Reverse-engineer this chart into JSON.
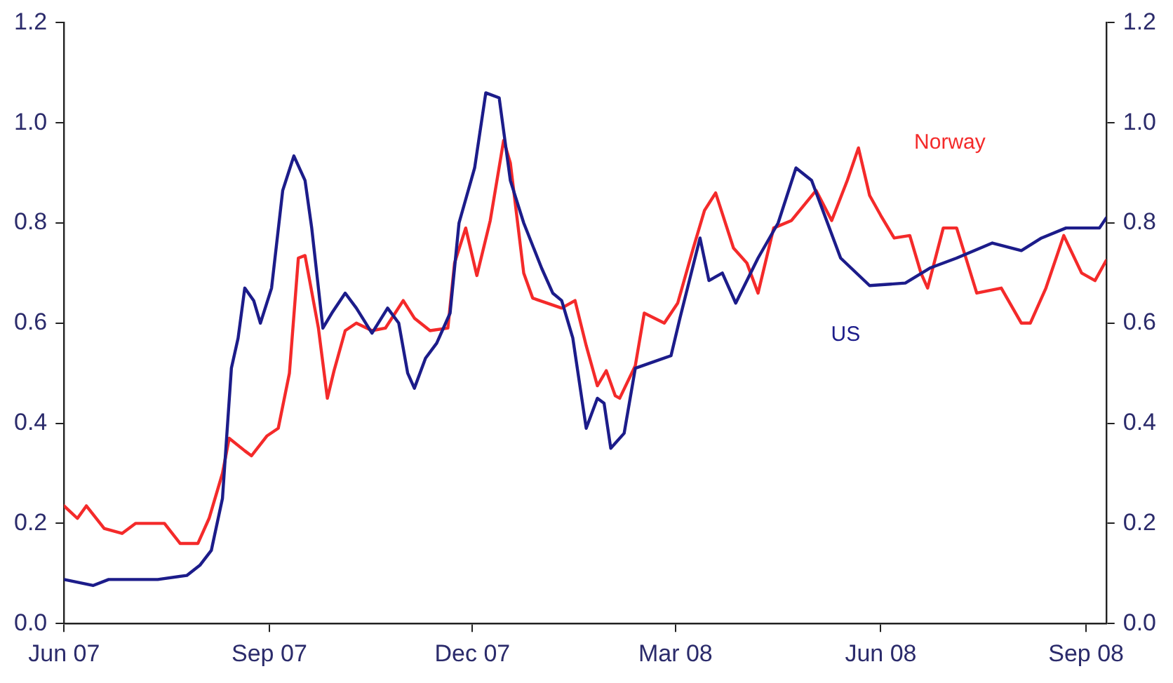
{
  "chart_data": {
    "type": "line",
    "xlim": [
      "2007-06-01",
      "2008-09-10"
    ],
    "xticks": [
      {
        "value": "2007-06-01",
        "label": "Jun 07"
      },
      {
        "value": "2007-09-01",
        "label": "Sep 07"
      },
      {
        "value": "2007-12-01",
        "label": "Dec 07"
      },
      {
        "value": "2008-03-01",
        "label": "Mar 08"
      },
      {
        "value": "2008-06-01",
        "label": "Jun 08"
      },
      {
        "value": "2008-09-01",
        "label": "Sep 08"
      }
    ],
    "ylim": [
      0,
      1.2
    ],
    "yticks": [
      {
        "value": 0,
        "label": "0.0"
      },
      {
        "value": 0.2,
        "label": "0.2"
      },
      {
        "value": 0.4,
        "label": "0.4"
      },
      {
        "value": 0.6,
        "label": "0.6"
      },
      {
        "value": 0.8,
        "label": "0.8"
      },
      {
        "value": 1,
        "label": "1.0"
      },
      {
        "value": 1.2,
        "label": "1.2"
      }
    ],
    "y2lim": [
      0,
      1.2
    ],
    "y2ticks": [
      {
        "value": 0,
        "label": "0.0"
      },
      {
        "value": 0.2,
        "label": "0.2"
      },
      {
        "value": 0.4,
        "label": "0.4"
      },
      {
        "value": 0.6,
        "label": "0.6"
      },
      {
        "value": 0.8,
        "label": "0.8"
      },
      {
        "value": 1,
        "label": "1.0"
      },
      {
        "value": 1.2,
        "label": "1.2"
      }
    ],
    "grid": false,
    "legend": false,
    "marker": "none",
    "line_style": "solid",
    "series": [
      {
        "name": "US",
        "color": "#1c1c8a",
        "x": [
          "2007-06-01",
          "2007-06-14",
          "2007-06-21",
          "2007-07-13",
          "2007-07-26",
          "2007-08-01",
          "2007-08-06",
          "2007-08-11",
          "2007-08-15",
          "2007-08-18",
          "2007-08-21",
          "2007-08-25",
          "2007-08-28",
          "2007-09-02",
          "2007-09-07",
          "2007-09-12",
          "2007-09-17",
          "2007-09-20",
          "2007-09-25",
          "2007-09-29",
          "2007-10-05",
          "2007-10-10",
          "2007-10-17",
          "2007-10-24",
          "2007-10-29",
          "2007-11-02",
          "2007-11-05",
          "2007-11-10",
          "2007-11-15",
          "2007-11-21",
          "2007-11-25",
          "2007-12-02",
          "2007-12-07",
          "2007-12-13",
          "2007-12-18",
          "2007-12-24",
          "2008-01-01",
          "2008-01-06",
          "2008-01-10",
          "2008-01-15",
          "2008-01-21",
          "2008-01-26",
          "2008-01-29",
          "2008-02-01",
          "2008-02-07",
          "2008-02-12",
          "2008-02-28",
          "2008-03-03",
          "2008-03-12",
          "2008-03-16",
          "2008-03-22",
          "2008-03-28",
          "2008-04-07",
          "2008-04-16",
          "2008-04-24",
          "2008-05-01",
          "2008-05-14",
          "2008-05-27",
          "2008-06-12",
          "2008-06-23",
          "2008-07-05",
          "2008-07-21",
          "2008-08-03",
          "2008-08-12",
          "2008-08-23",
          "2008-09-07",
          "2008-09-10"
        ],
        "values": [
          0.088,
          0.076,
          0.088,
          0.088,
          0.096,
          0.117,
          0.146,
          0.25,
          0.51,
          0.57,
          0.67,
          0.645,
          0.6,
          0.67,
          0.865,
          0.934,
          0.885,
          0.79,
          0.59,
          0.62,
          0.66,
          0.63,
          0.58,
          0.63,
          0.6,
          0.5,
          0.47,
          0.53,
          0.56,
          0.62,
          0.8,
          0.91,
          1.06,
          1.05,
          0.885,
          0.8,
          0.71,
          0.66,
          0.645,
          0.57,
          0.39,
          0.45,
          0.44,
          0.35,
          0.38,
          0.51,
          0.535,
          0.61,
          0.77,
          0.685,
          0.7,
          0.64,
          0.73,
          0.8,
          0.91,
          0.885,
          0.73,
          0.675,
          0.68,
          0.71,
          0.73,
          0.76,
          0.745,
          0.77,
          0.79,
          0.79,
          0.81
        ]
      },
      {
        "name": "Norway",
        "color": "#f42a2a",
        "x": [
          "2007-06-01",
          "2007-06-07",
          "2007-06-11",
          "2007-06-19",
          "2007-06-27",
          "2007-07-03",
          "2007-07-16",
          "2007-07-23",
          "2007-07-31",
          "2007-08-05",
          "2007-08-11",
          "2007-08-14",
          "2007-08-21",
          "2007-08-24",
          "2007-08-31",
          "2007-09-05",
          "2007-09-10",
          "2007-09-14",
          "2007-09-17",
          "2007-09-23",
          "2007-09-27",
          "2007-09-30",
          "2007-10-05",
          "2007-10-10",
          "2007-10-17",
          "2007-10-23",
          "2007-10-31",
          "2007-11-05",
          "2007-11-12",
          "2007-11-20",
          "2007-11-23",
          "2007-11-28",
          "2007-12-03",
          "2007-12-09",
          "2007-12-15",
          "2007-12-18",
          "2007-12-24",
          "2007-12-28",
          "2008-01-10",
          "2008-01-16",
          "2008-01-21",
          "2008-01-26",
          "2008-01-30",
          "2008-02-03",
          "2008-02-05",
          "2008-02-12",
          "2008-02-16",
          "2008-02-25",
          "2008-03-02",
          "2008-03-09",
          "2008-03-14",
          "2008-03-19",
          "2008-03-27",
          "2008-04-02",
          "2008-04-07",
          "2008-04-14",
          "2008-04-22",
          "2008-05-03",
          "2008-05-10",
          "2008-05-17",
          "2008-05-22",
          "2008-05-27",
          "2008-06-01",
          "2008-06-07",
          "2008-06-14",
          "2008-06-19",
          "2008-06-22",
          "2008-06-29",
          "2008-07-05",
          "2008-07-14",
          "2008-07-25",
          "2008-08-03",
          "2008-08-07",
          "2008-08-14",
          "2008-08-22",
          "2008-08-30",
          "2008-09-05",
          "2008-09-10"
        ],
        "values": [
          0.235,
          0.21,
          0.235,
          0.19,
          0.18,
          0.2,
          0.2,
          0.16,
          0.16,
          0.21,
          0.3,
          0.37,
          0.345,
          0.335,
          0.375,
          0.39,
          0.5,
          0.73,
          0.735,
          0.59,
          0.45,
          0.505,
          0.585,
          0.6,
          0.585,
          0.59,
          0.645,
          0.61,
          0.585,
          0.59,
          0.72,
          0.79,
          0.695,
          0.805,
          0.965,
          0.92,
          0.7,
          0.65,
          0.63,
          0.645,
          0.555,
          0.475,
          0.505,
          0.455,
          0.45,
          0.515,
          0.62,
          0.6,
          0.64,
          0.75,
          0.825,
          0.86,
          0.75,
          0.72,
          0.66,
          0.79,
          0.805,
          0.865,
          0.805,
          0.885,
          0.95,
          0.855,
          0.815,
          0.77,
          0.775,
          0.7,
          0.67,
          0.79,
          0.79,
          0.66,
          0.67,
          0.6,
          0.6,
          0.67,
          0.775,
          0.7,
          0.685,
          0.725
        ]
      }
    ]
  }
}
